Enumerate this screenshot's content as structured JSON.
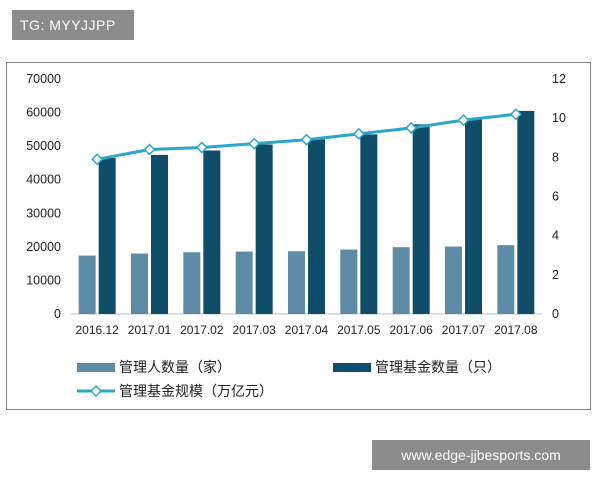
{
  "tag_label": "TG: MYYJJPP",
  "watermark": "www.edge-jjbesports.com",
  "colors": {
    "managers": "#5e8ca6",
    "funds": "#0f4d69",
    "scale": "#2aa8c9",
    "scale_marker_fill": "#ffffff",
    "axis_text": "#222222",
    "axis_line": "#bfbfbf"
  },
  "chart_data": {
    "type": "bar",
    "categories": [
      "2016.12",
      "2017.01",
      "2017.02",
      "2017.03",
      "2017.04",
      "2017.05",
      "2017.06",
      "2017.07",
      "2017.08"
    ],
    "series": [
      {
        "name": "管理人数量（家）",
        "type": "bar",
        "axis": "left",
        "values": [
          17400,
          18000,
          18400,
          18600,
          18700,
          19200,
          19900,
          20100,
          20500
        ]
      },
      {
        "name": "管理基金数量（只）",
        "type": "bar",
        "axis": "left",
        "values": [
          46500,
          47400,
          48700,
          50500,
          52000,
          53500,
          56500,
          58000,
          60500
        ]
      },
      {
        "name": "管理基金规模（万亿元）",
        "type": "line",
        "axis": "right",
        "values": [
          7.9,
          8.4,
          8.5,
          8.7,
          8.9,
          9.2,
          9.5,
          9.9,
          10.2
        ]
      }
    ],
    "y_left": {
      "min": 0,
      "max": 70000,
      "ticks": [
        "0",
        "10000",
        "20000",
        "30000",
        "40000",
        "50000",
        "60000",
        "70000"
      ]
    },
    "y_right": {
      "min": 0,
      "max": 12,
      "ticks": [
        "0",
        "2",
        "4",
        "6",
        "8",
        "10",
        "12"
      ]
    },
    "grid": false,
    "legend_position": "bottom"
  }
}
